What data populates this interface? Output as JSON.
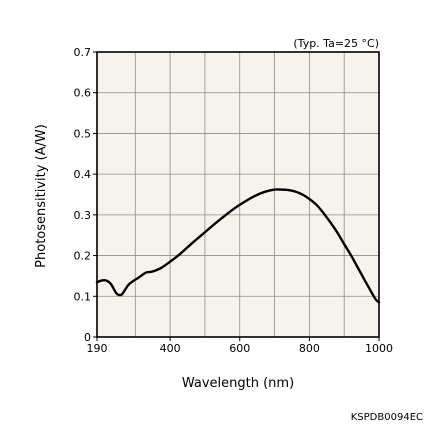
{
  "chart_data": {
    "type": "line",
    "title": "",
    "condition_note": "(Typ. Ta=25 °C)",
    "xlabel": "Wavelength (nm)",
    "ylabel": "Photosensitivity  (A/W)",
    "xlim": [
      190,
      1000
    ],
    "ylim": [
      0,
      0.7
    ],
    "x_ticks": [
      190,
      400,
      600,
      800,
      1000
    ],
    "x_tick_labels": [
      "190",
      "400",
      "600",
      "800",
      "1000"
    ],
    "x_minor_gridlines": [
      300,
      500,
      700,
      900
    ],
    "y_ticks": [
      0,
      0.1,
      0.2,
      0.3,
      0.4,
      0.5,
      0.6,
      0.7
    ],
    "y_tick_labels": [
      "0",
      "0.1",
      "0.2",
      "0.3",
      "0.4",
      "0.5",
      "0.6",
      "0.7"
    ],
    "grid": true,
    "series": [
      {
        "name": "",
        "color": "#000000",
        "x": [
          190,
          200,
          215,
          230,
          245,
          255,
          262,
          270,
          280,
          295,
          310,
          330,
          345,
          360,
          375,
          400,
          430,
          460,
          490,
          520,
          550,
          580,
          610,
          640,
          670,
          700,
          720,
          740,
          760,
          780,
          800,
          820,
          840,
          860,
          880,
          900,
          920,
          940,
          960,
          975,
          990,
          1000
        ],
        "y": [
          0.134,
          0.138,
          0.139,
          0.13,
          0.108,
          0.103,
          0.105,
          0.115,
          0.128,
          0.138,
          0.146,
          0.158,
          0.16,
          0.164,
          0.17,
          0.185,
          0.205,
          0.228,
          0.25,
          0.272,
          0.293,
          0.313,
          0.33,
          0.345,
          0.356,
          0.362,
          0.362,
          0.361,
          0.357,
          0.35,
          0.339,
          0.325,
          0.305,
          0.282,
          0.257,
          0.228,
          0.2,
          0.169,
          0.138,
          0.115,
          0.093,
          0.085
        ]
      }
    ]
  },
  "figure_code": "KSPDB0094EC",
  "colors": {
    "plot_background": "#f5f3eb",
    "gridline": "#8c8c8c",
    "frame": "#000000",
    "curve": "#000000"
  }
}
